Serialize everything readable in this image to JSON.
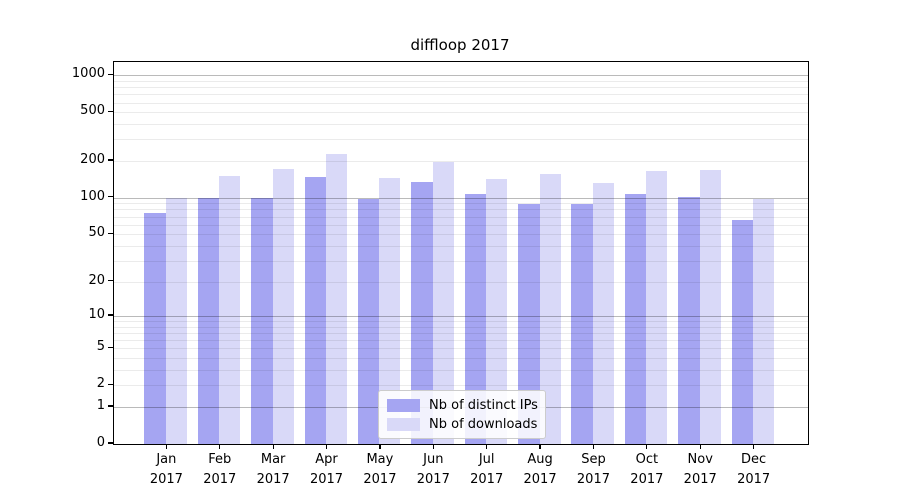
{
  "title": "diffloop 2017",
  "chart_data": {
    "type": "bar",
    "title": "diffloop 2017",
    "categories": [
      "Jan",
      "Feb",
      "Mar",
      "Apr",
      "May",
      "Jun",
      "Jul",
      "Aug",
      "Sep",
      "Oct",
      "Nov",
      "Dec"
    ],
    "year_label": "2017",
    "series": [
      {
        "name": "Nb of distinct IPs",
        "color": "#a5a5f2",
        "values": [
          75,
          100,
          100,
          149,
          97,
          135,
          108,
          89,
          88,
          108,
          101,
          66
        ]
      },
      {
        "name": "Nb of downloads",
        "color": "#d9d9f8",
        "values": [
          100,
          152,
          172,
          228,
          144,
          196,
          142,
          157,
          132,
          165,
          168,
          97
        ]
      }
    ],
    "xlabel": "",
    "ylabel": "",
    "yscale": "log1p",
    "ylim": [
      0,
      1283
    ],
    "y_ticks": [
      0,
      1,
      2,
      5,
      10,
      20,
      50,
      100,
      200,
      500,
      1000
    ],
    "grid": "on",
    "grid_over_bars": true,
    "legend_position": "bottom-center",
    "colors": {
      "major_grid": "rgba(0,0,0,0.27)",
      "minor_grid": "rgba(0,0,0,0.08)",
      "spine": "#000000",
      "background": "#ffffff"
    }
  }
}
